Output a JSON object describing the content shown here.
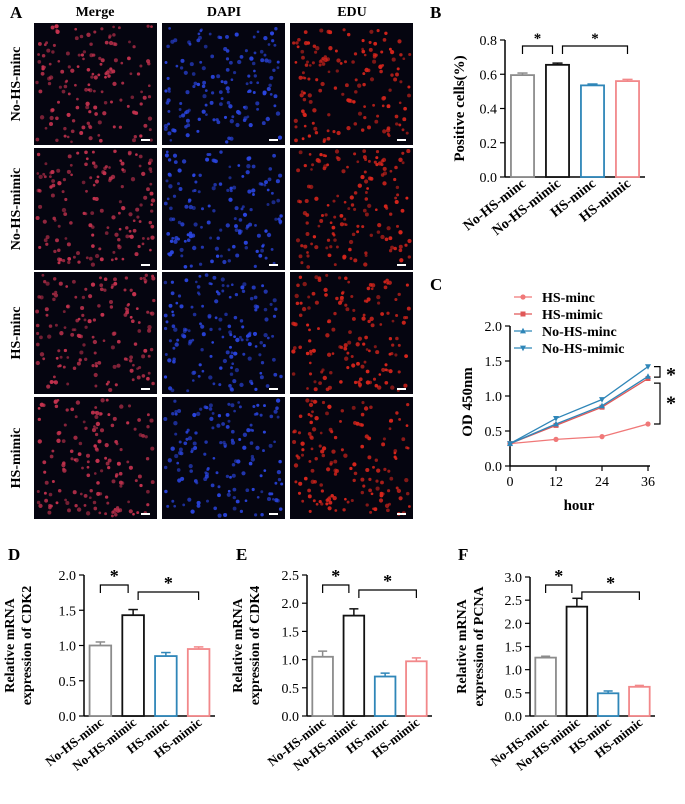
{
  "panels": {
    "A": "A",
    "B": "B",
    "C": "C",
    "D": "D",
    "E": "E",
    "F": "F"
  },
  "micrographs": {
    "columns": [
      "Merge",
      "DAPI",
      "EDU"
    ],
    "rows": [
      "No-HS-minc",
      "No-HS-mimic",
      "HS-minc",
      "HS-mimic"
    ],
    "colors": {
      "Merge": "#c4324e",
      "DAPI": "#2a45e0",
      "EDU": "#d9251c"
    },
    "scale_bar_label": "scale bar"
  },
  "significance_mark": "*",
  "bar_colors": [
    "#8c8c8c",
    "#111111",
    "#2f86b8",
    "#f2888a"
  ],
  "line_colors": {
    "HS-minc": "#f07878",
    "HS-mimic": "#e05858",
    "No-HS-minc": "#2f86b8",
    "No-HS-mimic": "#2f86b8"
  },
  "chart_data": [
    {
      "id": "B",
      "type": "bar",
      "title": "",
      "categories": [
        "No-HS-minc",
        "No-HS-mimic",
        "HS-minc",
        "HS-mimic"
      ],
      "values": [
        0.595,
        0.655,
        0.535,
        0.56
      ],
      "errors": [
        0.012,
        0.01,
        0.008,
        0.01
      ],
      "ylabel": "Positive cells(%)",
      "ylim": [
        0,
        0.8
      ],
      "yticks": [
        "0.0",
        "0.2",
        "0.4",
        "0.6",
        "0.8"
      ],
      "significance": [
        [
          0,
          1
        ],
        [
          1,
          3
        ]
      ]
    },
    {
      "id": "C",
      "type": "line",
      "x": [
        0,
        12,
        24,
        36
      ],
      "xticks": [
        "0",
        "12",
        "24",
        "36"
      ],
      "xlabel": "hour",
      "ylabel": "OD 450nm",
      "ylim": [
        0,
        2.0
      ],
      "yticks": [
        "0.0",
        "0.5",
        "1.0",
        "1.5",
        "2.0"
      ],
      "series": [
        {
          "name": "HS-minc",
          "marker": "circle",
          "values": [
            0.32,
            0.38,
            0.42,
            0.6
          ]
        },
        {
          "name": "HS-mimic",
          "marker": "square",
          "values": [
            0.32,
            0.58,
            0.84,
            1.25
          ]
        },
        {
          "name": "No-HS-minc",
          "marker": "triangle-up",
          "values": [
            0.32,
            0.6,
            0.86,
            1.28
          ]
        },
        {
          "name": "No-HS-mimic",
          "marker": "triangle-down",
          "values": [
            0.32,
            0.68,
            0.95,
            1.42
          ]
        }
      ],
      "legend_position": "top-left",
      "significance": [
        "*",
        "*"
      ]
    },
    {
      "id": "D",
      "type": "bar",
      "categories": [
        "No-HS-minc",
        "No-HS-mimic",
        "HS-minc",
        "HS-mimic"
      ],
      "values": [
        1.0,
        1.43,
        0.85,
        0.95
      ],
      "errors": [
        0.05,
        0.08,
        0.05,
        0.03
      ],
      "ylabel": [
        "Relative mRNA",
        "expression of CDK2"
      ],
      "ylim": [
        0,
        2.0
      ],
      "yticks": [
        "0.0",
        "0.5",
        "1.0",
        "1.5",
        "2.0"
      ],
      "significance": [
        [
          0,
          1
        ],
        [
          1,
          3
        ]
      ]
    },
    {
      "id": "E",
      "type": "bar",
      "categories": [
        "No-HS-minc",
        "No-HS-mimic",
        "HS-minc",
        "HS-mimic"
      ],
      "values": [
        1.05,
        1.78,
        0.7,
        0.97
      ],
      "errors": [
        0.1,
        0.12,
        0.06,
        0.06
      ],
      "ylabel": [
        "Relative mRNA",
        "expression of CDK4"
      ],
      "ylim": [
        0,
        2.4
      ],
      "yticks": [
        "0.0",
        "0.5",
        "1.0",
        "1.5",
        "2.0",
        "2.5"
      ],
      "yticks_values": [
        0,
        0.5,
        1.0,
        1.5,
        2.0,
        2.5
      ],
      "significance": [
        [
          0,
          1
        ],
        [
          1,
          3
        ]
      ]
    },
    {
      "id": "F",
      "type": "bar",
      "categories": [
        "No-HS-minc",
        "No-HS-mimic",
        "HS-minc",
        "HS-mimic"
      ],
      "values": [
        1.26,
        2.36,
        0.49,
        0.63
      ],
      "errors": [
        0.03,
        0.18,
        0.05,
        0.03
      ],
      "ylabel": [
        "Relative mRNA",
        "expression of PCNA"
      ],
      "ylim": [
        0,
        3.0
      ],
      "yticks": [
        "0.0",
        "0.5",
        "1.0",
        "1.5",
        "2.0",
        "2.5",
        "3.0"
      ],
      "significance": [
        [
          0,
          1
        ],
        [
          1,
          3
        ]
      ]
    }
  ]
}
